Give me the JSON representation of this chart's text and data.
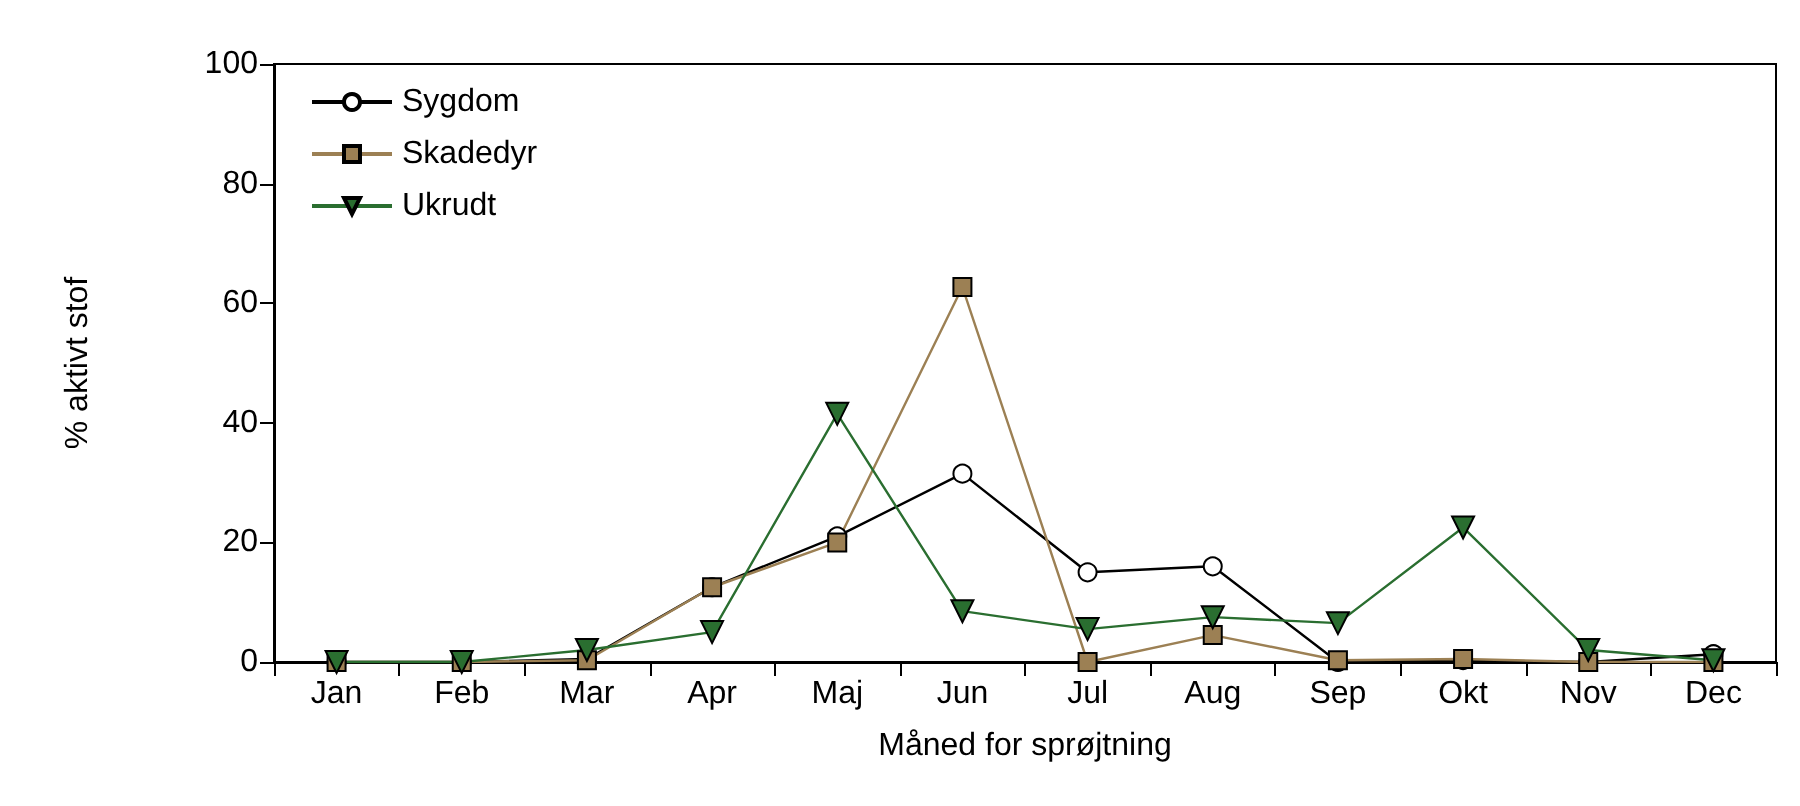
{
  "chart_data": {
    "type": "line",
    "xlabel": "Måned for sprøjtning",
    "ylabel": "% aktivt stof",
    "categories": [
      "Jan",
      "Feb",
      "Mar",
      "Apr",
      "Maj",
      "Jun",
      "Jul",
      "Aug",
      "Sep",
      "Okt",
      "Nov",
      "Dec"
    ],
    "series": [
      {
        "name": "Sygdom",
        "color": "#ffffff",
        "marker": "circle",
        "values": [
          0,
          0,
          0.5,
          12.5,
          21,
          31.5,
          15,
          16,
          0,
          0.3,
          0,
          1.3
        ]
      },
      {
        "name": "Skadedyr",
        "color": "#9c8054",
        "marker": "square",
        "values": [
          0,
          0,
          0.3,
          12.5,
          20,
          62.7,
          0,
          4.5,
          0.3,
          0.5,
          0,
          0
        ]
      },
      {
        "name": "Ukrudt",
        "color": "#2a6e30",
        "marker": "triangle",
        "values": [
          0,
          0,
          2,
          5,
          41.5,
          8.5,
          5.5,
          7.5,
          6.5,
          22.5,
          2,
          0.3
        ]
      }
    ],
    "ylim": [
      0,
      100
    ],
    "yticks": [
      0,
      20,
      40,
      60,
      80,
      100
    ],
    "grid": false,
    "legend": "top left"
  }
}
